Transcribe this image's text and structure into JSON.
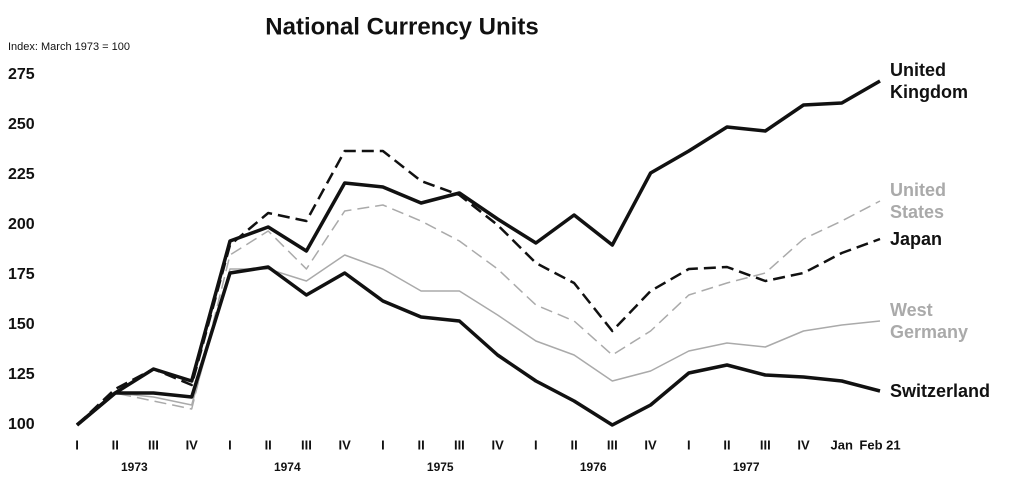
{
  "chart_data": {
    "type": "line",
    "title": "National Currency Units",
    "y_label": "Index: March 1973 = 100",
    "categories": [
      "I",
      "II",
      "III",
      "IV",
      "I",
      "II",
      "III",
      "IV",
      "I",
      "II",
      "III",
      "IV",
      "I",
      "II",
      "III",
      "IV",
      "I",
      "II",
      "III",
      "IV",
      "Jan",
      "Feb 21"
    ],
    "years": [
      "1973",
      "1974",
      "1975",
      "1976",
      "1977"
    ],
    "ylim": [
      100,
      275
    ],
    "yticks": [
      100,
      125,
      150,
      175,
      200,
      225,
      250,
      275
    ],
    "series": [
      {
        "name": "United Kingdom",
        "color": "#111111",
        "line_style": "solid",
        "values": [
          100,
          116,
          128,
          122,
          192,
          199,
          187,
          221,
          219,
          211,
          216,
          203,
          191,
          205,
          190,
          226,
          237,
          249,
          247,
          260,
          261,
          272
        ]
      },
      {
        "name": "United States",
        "color": "#aaaaaa",
        "line_style": "dashed",
        "values": [
          100,
          116,
          112,
          108,
          185,
          197,
          178,
          207,
          210,
          202,
          192,
          178,
          160,
          152,
          135,
          147,
          165,
          171,
          176,
          193,
          202,
          212
        ]
      },
      {
        "name": "Japan",
        "color": "#111111",
        "line_style": "dashed",
        "values": [
          100,
          118,
          128,
          120,
          190,
          206,
          202,
          237,
          237,
          222,
          215,
          200,
          181,
          171,
          147,
          167,
          178,
          179,
          172,
          176,
          186,
          193
        ]
      },
      {
        "name": "West Germany",
        "color": "#aaaaaa",
        "line_style": "solid",
        "values": [
          100,
          116,
          114,
          110,
          178,
          178,
          172,
          185,
          178,
          167,
          167,
          155,
          142,
          135,
          122,
          127,
          137,
          141,
          139,
          147,
          150,
          152
        ]
      },
      {
        "name": "Switzerland",
        "color": "#111111",
        "line_style": "solid",
        "values": [
          100,
          116,
          116,
          114,
          176,
          179,
          165,
          176,
          162,
          154,
          152,
          135,
          122,
          112,
          100,
          110,
          126,
          130,
          125,
          124,
          122,
          117
        ]
      }
    ]
  }
}
